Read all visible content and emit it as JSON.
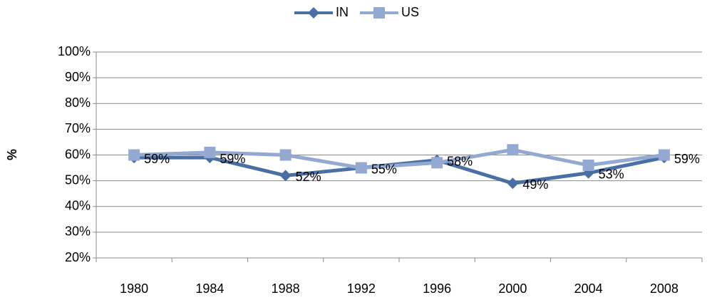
{
  "chart_data": {
    "type": "line",
    "y_label": "%",
    "categories": [
      "1980",
      "1984",
      "1988",
      "1992",
      "1996",
      "2000",
      "2004",
      "2008"
    ],
    "series": [
      {
        "name": "IN",
        "color": "#4a6fa5",
        "marker": "diamond",
        "values": [
          59,
          59,
          52,
          55,
          58,
          49,
          53,
          59
        ],
        "value_labels": [
          "59%",
          "59%",
          "52%",
          "55%",
          "58%",
          "49%",
          "53%",
          "59%"
        ]
      },
      {
        "name": "US",
        "color": "#94a9d1",
        "marker": "square",
        "values": [
          60,
          61,
          60,
          55,
          57,
          62,
          56,
          60
        ]
      }
    ],
    "ylim": [
      20,
      100
    ],
    "yticks": [
      {
        "value": 20,
        "label": "20%"
      },
      {
        "value": 30,
        "label": "30%"
      },
      {
        "value": 40,
        "label": "40%"
      },
      {
        "value": 50,
        "label": "50%"
      },
      {
        "value": 60,
        "label": "60%"
      },
      {
        "value": 70,
        "label": "70%"
      },
      {
        "value": 80,
        "label": "80%"
      },
      {
        "value": 90,
        "label": "90%"
      },
      {
        "value": 100,
        "label": "100%"
      }
    ],
    "grid": true,
    "legend": "top"
  }
}
